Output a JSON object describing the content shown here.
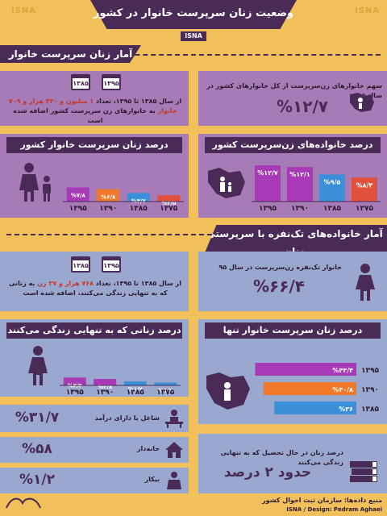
{
  "watermark": "ISNA",
  "header": {
    "title": "وضعیت زنان سرپرست خانوار در کشور",
    "badge": "ISNA"
  },
  "section1": {
    "title": "آمار زنان سرپرست خانوار"
  },
  "share_card": {
    "text": "سهم خانوارهای زن‌سرپرست از کل خانوارهای کشور در سال ۹۵",
    "value": "%۱۲/۷"
  },
  "growth_card1": {
    "year_a": "۱۳۸۵",
    "year_b": "۱۳۹۵",
    "text_1": "از سال ۱۳۸۵ تا ۱۳۹۵، تعداد",
    "highlight": "۱ میلیون و ۴۲۰ هزار و ۷۰۹ خانوار",
    "text_2": "به خانوارهای زن سرپرست کشور اضافه شده است"
  },
  "section2": {
    "title": "آمار خانواده‌های تک‌نفره با سرپرستی زنان"
  },
  "single_card": {
    "text": "خانوار تک‌نفره زن‌سرپرست در سال ۹۵",
    "value": "%۶۶/۴"
  },
  "growth_card2": {
    "year_a": "۱۳۸۵",
    "year_b": "۱۳۹۵",
    "text_1": "از سال ۱۳۸۵ تا ۱۳۹۵، تعداد",
    "highlight": "۷۶۸ هزار و ۲۷ زن",
    "text_2": "به زنانی که به تنهایی زندگی می‌کنند، اضافه شده است"
  },
  "stats": [
    {
      "label": "شاغل یا دارای درآمد",
      "value": "%۳۱/۷",
      "icon": "desk-worker-icon"
    },
    {
      "label": "خانه‌دار",
      "value": "%۵۸",
      "icon": "house-icon"
    },
    {
      "label": "بیکار",
      "value": "%۱/۲",
      "icon": "unemployed-person-icon"
    }
  ],
  "education_card": {
    "text": "درصد زنان در حال تحصیل که به تنهایی زندگی می‌کنند",
    "value": "حدود ۲ درصد"
  },
  "footer": {
    "source": "منبع داده‌ها: سازمان ثبت احوال کشور",
    "credit": "ISNA / Design: Pedram Aghaei"
  },
  "chart_data": [
    {
      "type": "bar",
      "title": "درصد خانواده‌های زن‌سرپرست کشور",
      "categories": [
        "۱۳۷۵",
        "۱۳۸۵",
        "۱۳۹۰",
        "۱۳۹۵"
      ],
      "values": [
        8.4,
        9.5,
        12.1,
        12.7
      ],
      "value_labels": [
        "%۸/۴",
        "%۹/۵",
        "%۱۲/۱",
        "%۱۲/۷"
      ],
      "colors": [
        "#e0503a",
        "#3a8fd8",
        "#a83ab8",
        "#a83ab8"
      ]
    },
    {
      "type": "bar",
      "title": "درصد زنان سرپرست خانوار کشور",
      "categories": [
        "۱۳۷۵",
        "۱۳۸۵",
        "۱۳۹۰",
        "۱۳۹۵"
      ],
      "values": [
        3.5,
        4.7,
        6.8,
        7.8
      ],
      "value_labels": [
        "%۳/۵",
        "%۴/۷",
        "%۶/۸",
        "%۷/۸"
      ],
      "colors": [
        "#e0503a",
        "#3a8fd8",
        "#f07a2a",
        "#a83ab8"
      ]
    },
    {
      "type": "bar",
      "orientation": "horizontal",
      "title": "درصد زنان سرپرست خانوار تنها",
      "categories": [
        "۱۳۹۵",
        "۱۳۹۰",
        "۱۳۸۵"
      ],
      "values": [
        44.4,
        40.8,
        36
      ],
      "value_labels": [
        "%۴۴/۴",
        "%۴۰/۸",
        "%۳۶"
      ],
      "colors": [
        "#a83ab8",
        "#f07a2a",
        "#3a8fd8"
      ]
    },
    {
      "type": "bar",
      "title": "درصد زنانی که به تنهایی زندگی می‌کنند",
      "categories": [
        "۱۳۷۵",
        "۱۳۸۵",
        "۱۳۹۰",
        "۱۳۹۵"
      ],
      "values": [
        1.2,
        1.7,
        2.8,
        3.4
      ],
      "value_labels": [
        "%۱/۲",
        "%۱/۷",
        "%۲/۸",
        "%۳/۴"
      ],
      "colors": [
        "#3a8fd8",
        "#3a8fd8",
        "#a83ab8",
        "#a83ab8"
      ]
    }
  ]
}
